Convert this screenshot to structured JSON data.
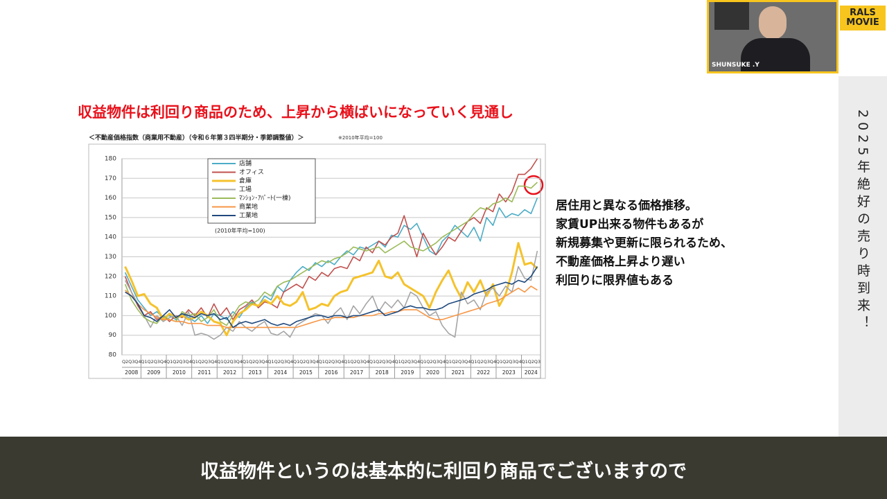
{
  "slide_title": "収益物件は利回り商品のため、上昇から横ばいになっていく見通し",
  "side_text": [
    "居住用と異なる価格推移。",
    "家賃UP出来る物件もあるが",
    "新規募集や更新に限られるため、",
    "不動産価格上昇より遅い",
    "利回りに限界値もある"
  ],
  "banner": "2025年絶好の売り時到来！",
  "caption": "収益物件というのは基本的に利回り商品でございますので",
  "webcam_name": "SHUNSUKE .Y",
  "logo": [
    "RALS",
    "MOVIE"
  ],
  "chart_data": {
    "type": "line",
    "title": "＜不動産価格指数（商業用不動産）（令和６年第３四半期分・季節調整値）＞",
    "subtitle": "※2010年平均=100",
    "annotation": "(2010年平均=100)",
    "ylim": [
      80,
      180
    ],
    "yticks": [
      80,
      90,
      100,
      110,
      120,
      130,
      140,
      150,
      160,
      170,
      180
    ],
    "grid": true,
    "categories": [
      "Q2",
      "Q3",
      "Q4",
      "Q1",
      "Q2",
      "Q3",
      "Q4",
      "Q1",
      "Q2",
      "Q3",
      "Q4",
      "Q1",
      "Q2",
      "Q3",
      "Q4",
      "Q1",
      "Q2",
      "Q3",
      "Q4",
      "Q1",
      "Q2",
      "Q3",
      "Q4",
      "Q1",
      "Q2",
      "Q3",
      "Q4",
      "Q1",
      "Q2",
      "Q3",
      "Q4",
      "Q1",
      "Q2",
      "Q3",
      "Q4",
      "Q1",
      "Q2",
      "Q3",
      "Q4",
      "Q1",
      "Q2",
      "Q3",
      "Q4",
      "Q1",
      "Q2",
      "Q3",
      "Q4",
      "Q1",
      "Q2",
      "Q3",
      "Q4",
      "Q1",
      "Q2",
      "Q3",
      "Q4",
      "Q1",
      "Q2",
      "Q3",
      "Q4",
      "Q1",
      "Q2",
      "Q3",
      "Q4",
      "Q1",
      "Q2",
      "Q3"
    ],
    "years": [
      "2008",
      "2009",
      "2010",
      "2011",
      "2012",
      "2013",
      "2014",
      "2015",
      "2016",
      "2017",
      "2018",
      "2019",
      "2020",
      "2021",
      "2022",
      "2023",
      "2024"
    ],
    "series": [
      {
        "name": "店舗",
        "color": "#4bacc6",
        "values": [
          122,
          115,
          108,
          104,
          100,
          102,
          99,
          100,
          98,
          101,
          99,
          97,
          100,
          96,
          101,
          100,
          98,
          102,
          99,
          104,
          107,
          105,
          110,
          108,
          115,
          112,
          118,
          122,
          125,
          123,
          127,
          125,
          128,
          126,
          130,
          133,
          131,
          135,
          134,
          136,
          138,
          135,
          141,
          140,
          146,
          144,
          147,
          140,
          133,
          131,
          138,
          141,
          146,
          143,
          140,
          145,
          138,
          150,
          146,
          155,
          150,
          152,
          151,
          154,
          152,
          160
        ]
      },
      {
        "name": "オフィス",
        "color": "#c0504d",
        "values": [
          120,
          112,
          105,
          100,
          102,
          98,
          100,
          97,
          100,
          99,
          103,
          100,
          104,
          99,
          106,
          100,
          104,
          98,
          103,
          105,
          108,
          104,
          107,
          106,
          104,
          112,
          114,
          116,
          114,
          120,
          118,
          122,
          120,
          124,
          125,
          124,
          130,
          128,
          135,
          132,
          138,
          136,
          140,
          142,
          151,
          140,
          130,
          142,
          136,
          131,
          135,
          140,
          138,
          143,
          148,
          150,
          147,
          155,
          153,
          162,
          158,
          163,
          172,
          172,
          175,
          180
        ]
      },
      {
        "name": "倉庫",
        "color": "#f5c22b",
        "values": [
          125,
          118,
          110,
          111,
          106,
          104,
          98,
          101,
          99,
          100,
          98,
          99,
          102,
          100,
          97,
          96,
          90,
          97,
          101,
          103,
          106,
          105,
          108,
          106,
          110,
          106,
          105,
          107,
          112,
          103,
          104,
          106,
          105,
          110,
          112,
          113,
          119,
          120,
          121,
          122,
          128,
          120,
          119,
          122,
          116,
          114,
          112,
          110,
          104,
          112,
          118,
          123,
          115,
          109,
          117,
          112,
          118,
          110,
          116,
          105,
          111,
          122,
          137,
          126,
          127,
          124
        ]
      },
      {
        "name": "工場",
        "color": "#a5a5a5",
        "values": [
          118,
          112,
          106,
          100,
          94,
          100,
          97,
          99,
          100,
          95,
          102,
          90,
          91,
          90,
          88,
          90,
          94,
          92,
          97,
          94,
          92,
          95,
          97,
          91,
          90,
          92,
          89,
          95,
          97,
          99,
          101,
          100,
          96,
          101,
          104,
          98,
          105,
          101,
          106,
          110,
          102,
          107,
          104,
          108,
          104,
          112,
          110,
          104,
          100,
          102,
          95,
          91,
          89,
          112,
          106,
          108,
          103,
          112,
          114,
          110,
          115,
          112,
          125,
          119,
          118,
          133
        ]
      },
      {
        "name": "ﾏﾝｼｮﾝ･ｱﾊﾟｰﾄ(一棟)",
        "color": "#9bbb59",
        "values": [
          116,
          108,
          103,
          99,
          97,
          96,
          100,
          98,
          97,
          102,
          100,
          101,
          97,
          99,
          103,
          97,
          95,
          100,
          105,
          107,
          106,
          108,
          112,
          110,
          115,
          117,
          118,
          120,
          122,
          124,
          126,
          128,
          127,
          129,
          130,
          132,
          135,
          134,
          133,
          134,
          135,
          132,
          134,
          136,
          138,
          135,
          134,
          133,
          135,
          137,
          140,
          142,
          144,
          146,
          148,
          152,
          155,
          154,
          157,
          158,
          160,
          158,
          166,
          166,
          165,
          168
        ]
      },
      {
        "name": "商業地",
        "color": "#f79646",
        "values": [
          113,
          110,
          106,
          103,
          101,
          99,
          98,
          98,
          97,
          97,
          96,
          96,
          96,
          95,
          95,
          95,
          94,
          94,
          94,
          94,
          94,
          94,
          94,
          94,
          94,
          94,
          94,
          94,
          95,
          96,
          97,
          98,
          98,
          99,
          99,
          99,
          99,
          100,
          100,
          100,
          101,
          101,
          102,
          102,
          103,
          103,
          103,
          101,
          99,
          98,
          98,
          99,
          100,
          101,
          102,
          103,
          104,
          106,
          107,
          108,
          110,
          112,
          114,
          112,
          115,
          113
        ]
      },
      {
        "name": "工業地",
        "color": "#1f497d",
        "values": [
          112,
          110,
          106,
          100,
          99,
          97,
          100,
          103,
          99,
          101,
          100,
          99,
          101,
          100,
          101,
          98,
          99,
          94,
          96,
          97,
          96,
          97,
          98,
          96,
          95,
          96,
          95,
          97,
          98,
          99,
          100,
          100,
          99,
          100,
          100,
          99,
          100,
          100,
          101,
          102,
          103,
          100,
          101,
          102,
          104,
          105,
          104,
          104,
          103,
          103,
          104,
          106,
          107,
          108,
          109,
          111,
          112,
          113,
          115,
          116,
          117,
          116,
          118,
          117,
          120,
          125
        ]
      }
    ]
  }
}
